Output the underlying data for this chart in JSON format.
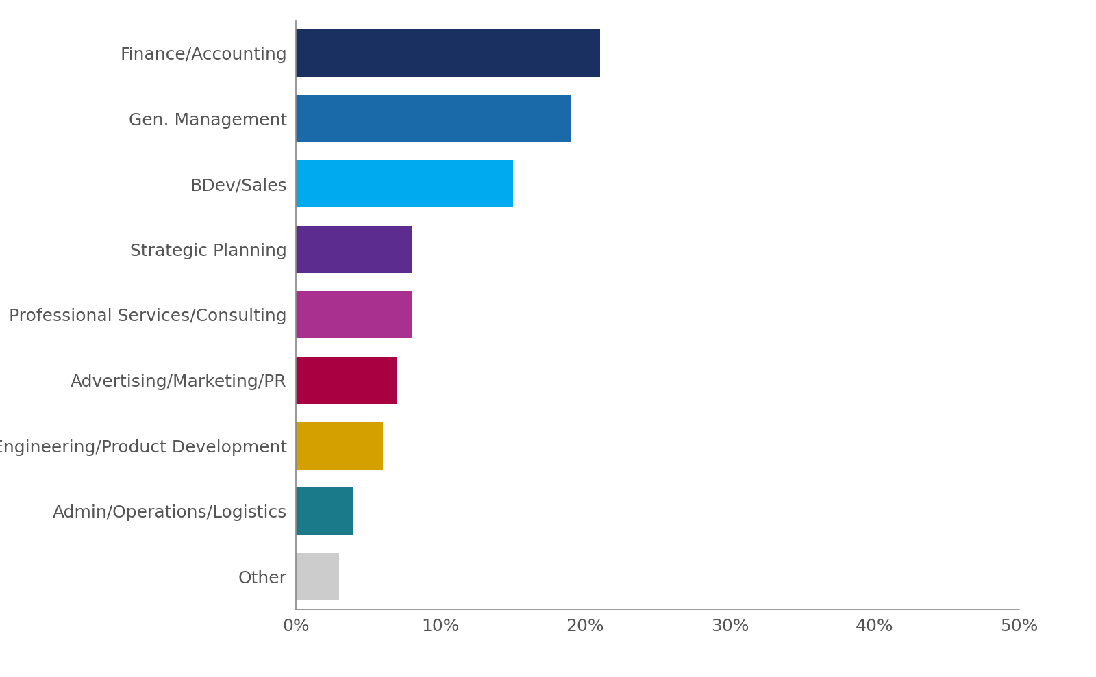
{
  "categories": [
    "Finance/Accounting",
    "Gen. Management",
    "BDev/Sales",
    "Strategic Planning",
    "Professional Services/Consulting",
    "Advertising/Marketing/PR",
    "Engineering/Product Development",
    "Admin/Operations/Logistics",
    "Other"
  ],
  "values": [
    21,
    19,
    15,
    8,
    8,
    7,
    6,
    4,
    3
  ],
  "colors": [
    "#1a3060",
    "#1a6aaa",
    "#00aaee",
    "#5c2d8e",
    "#aa3090",
    "#a80040",
    "#d4a000",
    "#1a7a8a",
    "#cccccc"
  ],
  "xlim": [
    0,
    50
  ],
  "xtick_values": [
    0,
    10,
    20,
    30,
    40,
    50
  ],
  "background_color": "#ffffff",
  "label_fontsize": 18,
  "tick_fontsize": 18,
  "bar_height": 0.72,
  "label_color": "#555555",
  "spine_color": "#888888"
}
